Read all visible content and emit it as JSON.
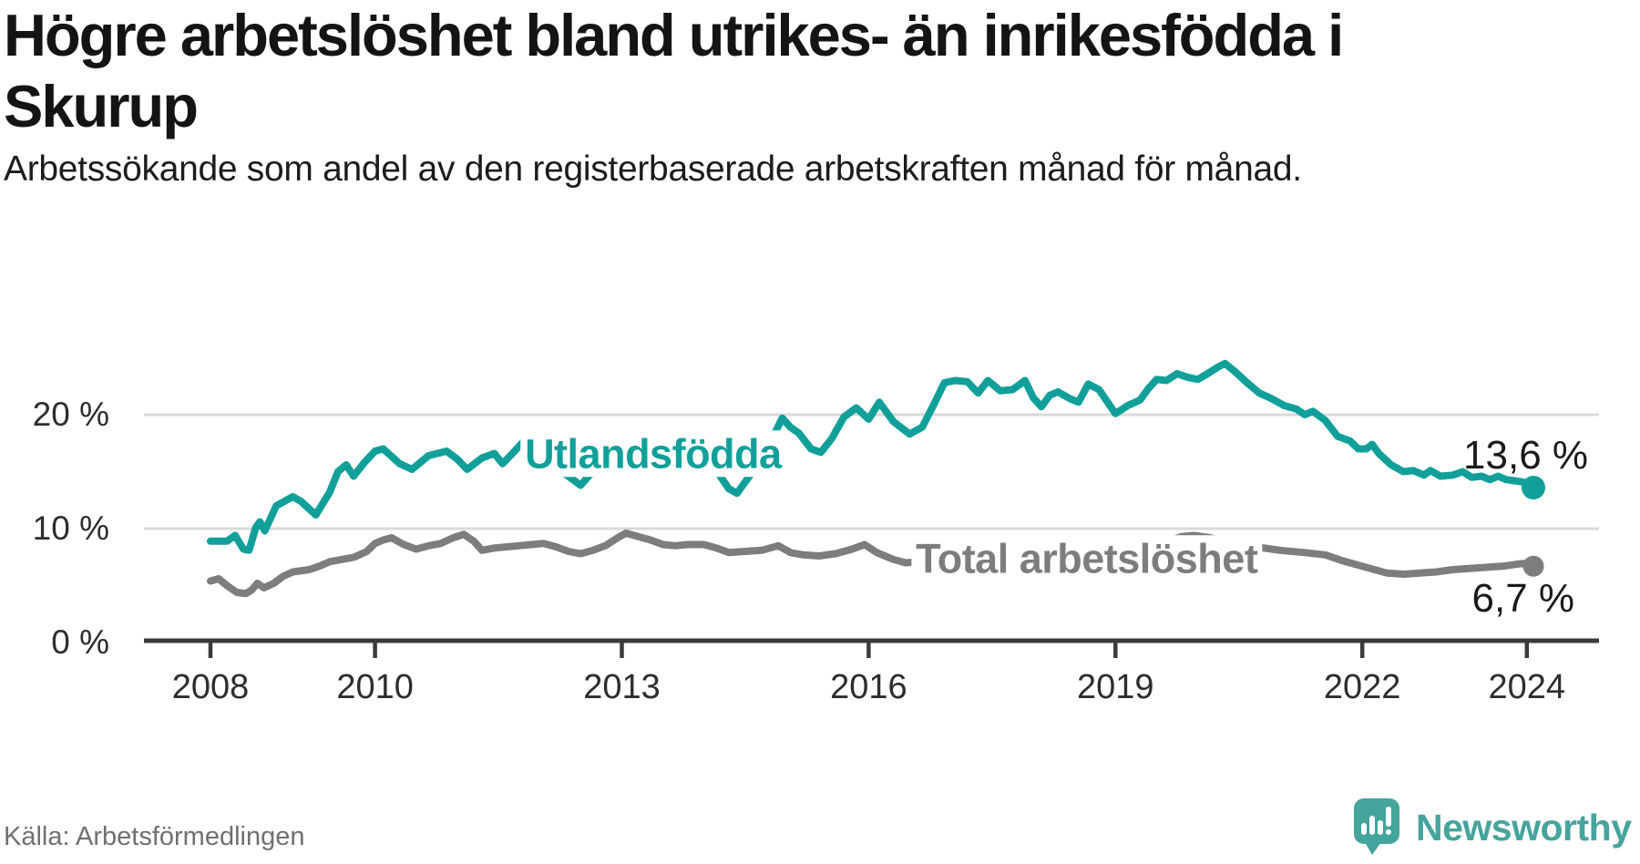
{
  "header": {
    "title": "Högre arbetslöshet bland utrikes- än inrikesfödda i Skurup",
    "subtitle": "Arbetssökande som andel av den registerbaserade arbetskraften månad för månad."
  },
  "footer": {
    "source": "Källa: Arbetsförmedlingen",
    "brand": "Newsworthy",
    "brand_color": "#45A49C"
  },
  "chart_data": {
    "type": "line",
    "unit": "percent of registered labour force",
    "x_axis": {
      "range": [
        2007.7,
        2024.9
      ],
      "ticks": [
        {
          "year": 2008,
          "label": "2008"
        },
        {
          "year": 2010,
          "label": "2010"
        },
        {
          "year": 2013,
          "label": "2013"
        },
        {
          "year": 2016,
          "label": "2016"
        },
        {
          "year": 2019,
          "label": "2019"
        },
        {
          "year": 2022,
          "label": "2022"
        },
        {
          "year": 2024,
          "label": "2024"
        }
      ]
    },
    "y_axis": {
      "range": [
        0,
        26
      ],
      "grid": "horizontal-only",
      "ticks": [
        {
          "value": 0,
          "label": "0 %"
        },
        {
          "value": 10,
          "label": "10 %"
        },
        {
          "value": 20,
          "label": "20 %"
        }
      ]
    },
    "grid_color": "#D9D9D9",
    "axis_color": "#3B3B3B",
    "series": [
      {
        "id": "utlandsfodda",
        "name": "Utlandsfödda",
        "color": "#10A099",
        "dot_radius": 13,
        "inline_label": {
          "text": "Utlandsfödda",
          "year": 2013.38,
          "value": 16.6
        },
        "end_label": {
          "text": "13,6 %",
          "dx": 60,
          "dy": -35,
          "color": "#1A1A1A"
        },
        "last_value": "13,6 %",
        "points": [
          [
            2008.0,
            8.9
          ],
          [
            2008.2,
            8.9
          ],
          [
            2008.3,
            9.4
          ],
          [
            2008.4,
            8.2
          ],
          [
            2008.47,
            8.1
          ],
          [
            2008.55,
            10.1
          ],
          [
            2008.6,
            10.6
          ],
          [
            2008.66,
            9.8
          ],
          [
            2008.8,
            12.0
          ],
          [
            2009.0,
            12.8
          ],
          [
            2009.1,
            12.4
          ],
          [
            2009.28,
            11.2
          ],
          [
            2009.45,
            13.2
          ],
          [
            2009.55,
            15.0
          ],
          [
            2009.65,
            15.6
          ],
          [
            2009.74,
            14.6
          ],
          [
            2009.87,
            15.8
          ],
          [
            2010.0,
            16.8
          ],
          [
            2010.1,
            17.0
          ],
          [
            2010.3,
            15.7
          ],
          [
            2010.45,
            15.2
          ],
          [
            2010.65,
            16.4
          ],
          [
            2010.87,
            16.8
          ],
          [
            2011.0,
            16.1
          ],
          [
            2011.12,
            15.2
          ],
          [
            2011.3,
            16.2
          ],
          [
            2011.45,
            16.6
          ],
          [
            2011.55,
            15.7
          ],
          [
            2011.67,
            16.6
          ],
          [
            2011.85,
            18.0
          ],
          [
            2012.0,
            16.3
          ],
          [
            2012.2,
            15.3
          ],
          [
            2012.35,
            14.6
          ],
          [
            2012.5,
            13.8
          ],
          [
            2012.62,
            14.8
          ],
          [
            2012.8,
            15.2
          ],
          [
            2013.0,
            15.4
          ],
          [
            2013.2,
            15.8
          ],
          [
            2013.5,
            15.3
          ],
          [
            2013.8,
            15.4
          ],
          [
            2014.0,
            15.2
          ],
          [
            2014.15,
            15.1
          ],
          [
            2014.3,
            13.5
          ],
          [
            2014.4,
            13.1
          ],
          [
            2014.55,
            14.6
          ],
          [
            2014.75,
            16.8
          ],
          [
            2014.95,
            19.7
          ],
          [
            2015.05,
            18.9
          ],
          [
            2015.15,
            18.4
          ],
          [
            2015.3,
            17.0
          ],
          [
            2015.42,
            16.7
          ],
          [
            2015.55,
            17.9
          ],
          [
            2015.7,
            19.8
          ],
          [
            2015.85,
            20.6
          ],
          [
            2016.0,
            19.6
          ],
          [
            2016.13,
            21.1
          ],
          [
            2016.3,
            19.4
          ],
          [
            2016.5,
            18.3
          ],
          [
            2016.65,
            18.9
          ],
          [
            2016.8,
            21.0
          ],
          [
            2016.92,
            22.8
          ],
          [
            2017.05,
            23.0
          ],
          [
            2017.2,
            22.9
          ],
          [
            2017.33,
            21.9
          ],
          [
            2017.45,
            23.0
          ],
          [
            2017.6,
            22.1
          ],
          [
            2017.75,
            22.2
          ],
          [
            2017.9,
            23.0
          ],
          [
            2018.0,
            21.5
          ],
          [
            2018.1,
            20.7
          ],
          [
            2018.2,
            21.7
          ],
          [
            2018.3,
            22.0
          ],
          [
            2018.45,
            21.4
          ],
          [
            2018.55,
            21.1
          ],
          [
            2018.67,
            22.7
          ],
          [
            2018.8,
            22.2
          ],
          [
            2019.0,
            20.1
          ],
          [
            2019.15,
            20.8
          ],
          [
            2019.3,
            21.3
          ],
          [
            2019.4,
            22.3
          ],
          [
            2019.5,
            23.1
          ],
          [
            2019.62,
            23.0
          ],
          [
            2019.75,
            23.6
          ],
          [
            2019.87,
            23.3
          ],
          [
            2020.0,
            23.1
          ],
          [
            2020.12,
            23.6
          ],
          [
            2020.25,
            24.2
          ],
          [
            2020.33,
            24.5
          ],
          [
            2020.45,
            23.8
          ],
          [
            2020.6,
            22.8
          ],
          [
            2020.75,
            21.9
          ],
          [
            2020.9,
            21.4
          ],
          [
            2021.05,
            20.8
          ],
          [
            2021.2,
            20.5
          ],
          [
            2021.3,
            20.0
          ],
          [
            2021.4,
            20.3
          ],
          [
            2021.55,
            19.5
          ],
          [
            2021.7,
            18.1
          ],
          [
            2021.85,
            17.7
          ],
          [
            2021.95,
            17.0
          ],
          [
            2022.05,
            17.0
          ],
          [
            2022.12,
            17.4
          ],
          [
            2022.2,
            16.6
          ],
          [
            2022.35,
            15.6
          ],
          [
            2022.5,
            15.0
          ],
          [
            2022.62,
            15.1
          ],
          [
            2022.75,
            14.7
          ],
          [
            2022.83,
            15.1
          ],
          [
            2022.95,
            14.6
          ],
          [
            2023.1,
            14.7
          ],
          [
            2023.22,
            15.0
          ],
          [
            2023.33,
            14.5
          ],
          [
            2023.45,
            14.6
          ],
          [
            2023.55,
            14.3
          ],
          [
            2023.65,
            14.6
          ],
          [
            2023.75,
            14.3
          ],
          [
            2023.85,
            14.2
          ],
          [
            2023.95,
            14.1
          ],
          [
            2024.08,
            13.6
          ]
        ]
      },
      {
        "id": "total",
        "name": "Total arbetslöshet",
        "color": "#7D7D80",
        "dot_radius": 11.5,
        "inline_label": {
          "text": "Total arbetslöshet",
          "year": 2018.65,
          "value": 7.4
        },
        "end_label": {
          "text": "6,7 %",
          "dx": 45,
          "dy": 36,
          "color": "#1A1A1A"
        },
        "last_value": "6,7 %",
        "points": [
          [
            2008.0,
            5.4
          ],
          [
            2008.1,
            5.6
          ],
          [
            2008.2,
            5.0
          ],
          [
            2008.32,
            4.4
          ],
          [
            2008.43,
            4.3
          ],
          [
            2008.5,
            4.6
          ],
          [
            2008.57,
            5.2
          ],
          [
            2008.65,
            4.8
          ],
          [
            2008.77,
            5.2
          ],
          [
            2008.88,
            5.8
          ],
          [
            2009.0,
            6.2
          ],
          [
            2009.2,
            6.4
          ],
          [
            2009.32,
            6.7
          ],
          [
            2009.45,
            7.1
          ],
          [
            2009.6,
            7.3
          ],
          [
            2009.75,
            7.5
          ],
          [
            2009.9,
            8.0
          ],
          [
            2010.0,
            8.7
          ],
          [
            2010.1,
            9.0
          ],
          [
            2010.2,
            9.2
          ],
          [
            2010.35,
            8.6
          ],
          [
            2010.5,
            8.2
          ],
          [
            2010.65,
            8.5
          ],
          [
            2010.8,
            8.7
          ],
          [
            2010.95,
            9.2
          ],
          [
            2011.08,
            9.5
          ],
          [
            2011.2,
            8.9
          ],
          [
            2011.3,
            8.1
          ],
          [
            2011.45,
            8.3
          ],
          [
            2011.6,
            8.4
          ],
          [
            2011.75,
            8.5
          ],
          [
            2011.9,
            8.6
          ],
          [
            2012.05,
            8.7
          ],
          [
            2012.2,
            8.4
          ],
          [
            2012.35,
            8.0
          ],
          [
            2012.5,
            7.8
          ],
          [
            2012.65,
            8.1
          ],
          [
            2012.8,
            8.5
          ],
          [
            2012.95,
            9.2
          ],
          [
            2013.05,
            9.6
          ],
          [
            2013.2,
            9.3
          ],
          [
            2013.35,
            9.0
          ],
          [
            2013.5,
            8.6
          ],
          [
            2013.65,
            8.5
          ],
          [
            2013.8,
            8.6
          ],
          [
            2014.0,
            8.6
          ],
          [
            2014.15,
            8.3
          ],
          [
            2014.3,
            7.9
          ],
          [
            2014.5,
            8.0
          ],
          [
            2014.7,
            8.1
          ],
          [
            2014.9,
            8.5
          ],
          [
            2015.05,
            7.9
          ],
          [
            2015.2,
            7.7
          ],
          [
            2015.4,
            7.6
          ],
          [
            2015.6,
            7.8
          ],
          [
            2015.8,
            8.2
          ],
          [
            2015.95,
            8.6
          ],
          [
            2016.1,
            7.9
          ],
          [
            2016.3,
            7.3
          ],
          [
            2016.45,
            7.0
          ],
          [
            2016.6,
            7.1
          ],
          [
            2016.8,
            7.4
          ],
          [
            2017.0,
            7.6
          ],
          [
            2017.25,
            7.5
          ],
          [
            2017.5,
            7.4
          ],
          [
            2017.75,
            7.5
          ],
          [
            2018.0,
            7.5
          ],
          [
            2018.25,
            7.5
          ],
          [
            2018.5,
            7.5
          ],
          [
            2018.75,
            7.6
          ],
          [
            2019.0,
            7.8
          ],
          [
            2019.2,
            8.0
          ],
          [
            2019.4,
            8.4
          ],
          [
            2019.6,
            8.8
          ],
          [
            2019.8,
            9.3
          ],
          [
            2019.95,
            9.4
          ],
          [
            2020.15,
            9.2
          ],
          [
            2020.4,
            8.8
          ],
          [
            2020.7,
            8.4
          ],
          [
            2021.0,
            8.1
          ],
          [
            2021.3,
            7.9
          ],
          [
            2021.55,
            7.7
          ],
          [
            2021.75,
            7.2
          ],
          [
            2021.9,
            6.9
          ],
          [
            2022.1,
            6.5
          ],
          [
            2022.3,
            6.1
          ],
          [
            2022.5,
            6.0
          ],
          [
            2022.7,
            6.1
          ],
          [
            2022.9,
            6.2
          ],
          [
            2023.1,
            6.4
          ],
          [
            2023.3,
            6.5
          ],
          [
            2023.5,
            6.6
          ],
          [
            2023.7,
            6.7
          ],
          [
            2023.9,
            6.9
          ],
          [
            2024.0,
            6.95
          ],
          [
            2024.08,
            6.7
          ]
        ]
      }
    ]
  }
}
